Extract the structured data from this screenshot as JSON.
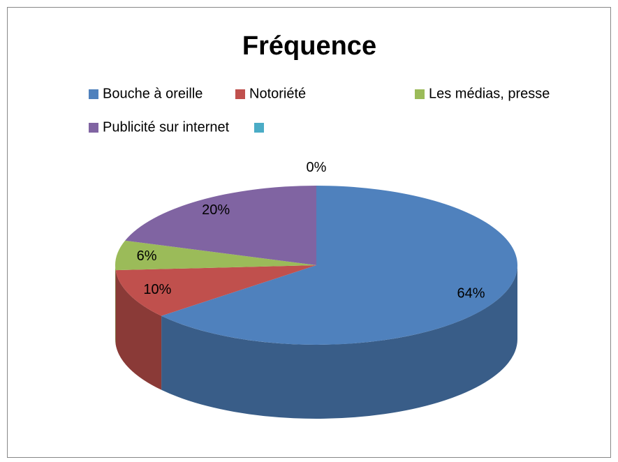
{
  "chart_data": {
    "type": "pie3d",
    "title": "Fréquence",
    "categories": [
      "Bouche à oreille",
      "Notoriété",
      "Les médias, presse",
      "Publicité sur internet",
      null
    ],
    "values": [
      64,
      10,
      6,
      20,
      0
    ],
    "value_labels": [
      "64%",
      "10%",
      "6%",
      "20%",
      "0%"
    ],
    "colors": [
      "#4f81bd",
      "#c0504d",
      "#9bbb59",
      "#8064a2",
      "#4bacc6"
    ],
    "legend": "top"
  }
}
